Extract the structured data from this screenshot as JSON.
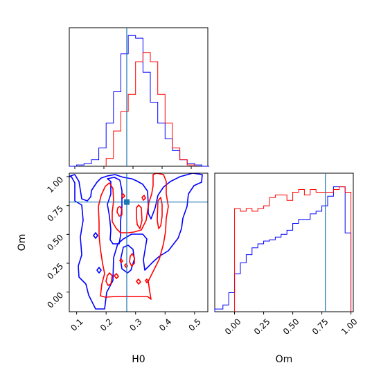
{
  "chart_data": {
    "type": "corner",
    "truth": {
      "H0": 0.27,
      "Om": 0.78,
      "color": "#1f77b4"
    },
    "colors": {
      "blue": "#0000ff",
      "red": "#ff0000",
      "truth": "#1f77b4",
      "frame": "#000000"
    },
    "panels": [
      {
        "id": "hist_H0",
        "type": "histogram",
        "xlim": [
          0.075,
          0.545
        ],
        "ylim": [
          0,
          1.06
        ],
        "series": [
          {
            "color": "#0000ff",
            "bins": [
              0.075,
              0.1,
              0.125,
              0.15,
              0.175,
              0.2,
              0.225,
              0.25,
              0.275,
              0.3,
              0.325,
              0.35,
              0.375,
              0.4,
              0.425,
              0.45,
              0.475,
              0.5,
              0.525,
              0.55
            ],
            "values": [
              0.0,
              0.01,
              0.02,
              0.05,
              0.14,
              0.33,
              0.57,
              0.86,
              1.0,
              0.98,
              0.72,
              0.49,
              0.33,
              0.21,
              0.12,
              0.05,
              0.02,
              0.01,
              0.0
            ]
          },
          {
            "color": "#ff0000",
            "bins": [
              0.2,
              0.225,
              0.25,
              0.275,
              0.3,
              0.325,
              0.35,
              0.375,
              0.4,
              0.425,
              0.45,
              0.475,
              0.5
            ],
            "values": [
              0.06,
              0.27,
              0.42,
              0.55,
              0.8,
              0.87,
              0.8,
              0.55,
              0.33,
              0.14,
              0.05,
              0.01
            ]
          }
        ]
      },
      {
        "id": "contour_H0_Om",
        "type": "contour",
        "xlabel": "H0",
        "ylabel": "Om",
        "xlim": [
          0.075,
          0.545
        ],
        "ylim": [
          -0.17,
          1.03
        ],
        "xticks": [
          "0.1",
          "0.2",
          "0.3",
          "0.4",
          "0.5"
        ],
        "yticks": [
          "0.00",
          "0.25",
          "0.50",
          "0.75",
          "1.00"
        ]
      },
      {
        "id": "hist_Om",
        "type": "histogram",
        "xlabel": "Om",
        "xlim": [
          -0.17,
          1.02
        ],
        "ylim": [
          0,
          1.02
        ],
        "xticks": [
          "0.00",
          "0.25",
          "0.50",
          "0.75",
          "1.00"
        ],
        "series": [
          {
            "color": "#0000ff",
            "bins": [
              -0.17,
              -0.1,
              -0.05,
              0.0,
              0.05,
              0.1,
              0.15,
              0.2,
              0.25,
              0.3,
              0.35,
              0.4,
              0.45,
              0.5,
              0.55,
              0.6,
              0.65,
              0.7,
              0.75,
              0.8,
              0.85,
              0.9,
              0.95,
              1.0
            ],
            "values": [
              0.02,
              0.05,
              0.14,
              0.28,
              0.36,
              0.42,
              0.47,
              0.5,
              0.52,
              0.53,
              0.55,
              0.57,
              0.6,
              0.65,
              0.68,
              0.68,
              0.72,
              0.74,
              0.78,
              0.85,
              0.92,
              0.92,
              0.58
            ]
          },
          {
            "color": "#ff0000",
            "bins": [
              0.0,
              0.05,
              0.1,
              0.15,
              0.2,
              0.25,
              0.3,
              0.35,
              0.4,
              0.45,
              0.5,
              0.55,
              0.6,
              0.65,
              0.7,
              0.75,
              0.8,
              0.85,
              0.9,
              0.95,
              1.0
            ],
            "values": [
              0.76,
              0.74,
              0.76,
              0.74,
              0.76,
              0.78,
              0.84,
              0.86,
              0.86,
              0.82,
              0.88,
              0.9,
              0.86,
              0.9,
              0.88,
              0.88,
              0.88,
              0.9,
              0.92,
              0.88
            ]
          }
        ]
      }
    ]
  }
}
